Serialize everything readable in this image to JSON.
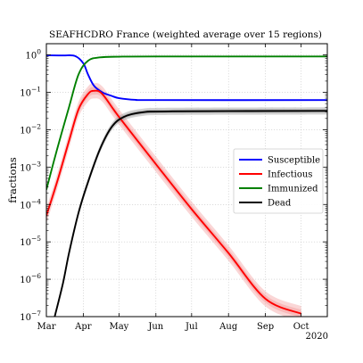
{
  "chart_data": {
    "type": "line",
    "title": "SEAFHCDRO France (weighted average over 15 regions)",
    "xlabel": "",
    "ylabel": "fractions",
    "year_label": "2020",
    "x_scale": "date",
    "y_scale": "log",
    "xlim": [
      "2020-03-01",
      "2020-10-23"
    ],
    "ylim": [
      1e-07,
      2
    ],
    "x_ticks": [
      {
        "date": "2020-03-01",
        "label": "Mar"
      },
      {
        "date": "2020-04-01",
        "label": "Apr"
      },
      {
        "date": "2020-05-01",
        "label": "May"
      },
      {
        "date": "2020-06-01",
        "label": "Jun"
      },
      {
        "date": "2020-07-01",
        "label": "Jul"
      },
      {
        "date": "2020-08-01",
        "label": "Aug"
      },
      {
        "date": "2020-09-01",
        "label": "Sep"
      },
      {
        "date": "2020-10-01",
        "label": "Oct"
      }
    ],
    "y_ticks": [
      {
        "exp": 0,
        "label": "10",
        "sup": "0"
      },
      {
        "exp": -1,
        "label": "10",
        "sup": "−1"
      },
      {
        "exp": -2,
        "label": "10",
        "sup": "−2"
      },
      {
        "exp": -3,
        "label": "10",
        "sup": "−3"
      },
      {
        "exp": -4,
        "label": "10",
        "sup": "−4"
      },
      {
        "exp": -5,
        "label": "10",
        "sup": "−5"
      },
      {
        "exp": -6,
        "label": "10",
        "sup": "−6"
      },
      {
        "exp": -7,
        "label": "10",
        "sup": "−7"
      }
    ],
    "grid": true,
    "legend_position": "center-right",
    "series": [
      {
        "name": "Susceptible",
        "color": "#0000ff",
        "band_color": "",
        "points": [
          [
            "2020-03-01",
            0.98
          ],
          [
            "2020-03-15",
            0.97
          ],
          [
            "2020-03-25",
            0.94
          ],
          [
            "2020-04-01",
            0.6
          ],
          [
            "2020-04-05",
            0.3
          ],
          [
            "2020-04-10",
            0.15
          ],
          [
            "2020-04-17",
            0.1
          ],
          [
            "2020-04-25",
            0.08
          ],
          [
            "2020-05-01",
            0.07
          ],
          [
            "2020-05-15",
            0.063
          ],
          [
            "2020-06-01",
            0.062
          ],
          [
            "2020-10-23",
            0.062
          ]
        ]
      },
      {
        "name": "Infectious",
        "color": "#ff0000",
        "band_color": "#f4a3a3",
        "points": [
          [
            "2020-03-01",
            5e-05
          ],
          [
            "2020-03-10",
            0.0004
          ],
          [
            "2020-03-20",
            0.005
          ],
          [
            "2020-03-28",
            0.035
          ],
          [
            "2020-04-05",
            0.09
          ],
          [
            "2020-04-10",
            0.11
          ],
          [
            "2020-04-17",
            0.09
          ],
          [
            "2020-05-01",
            0.022
          ],
          [
            "2020-06-01",
            0.0012
          ],
          [
            "2020-07-01",
            7.5e-05
          ],
          [
            "2020-08-01",
            5e-06
          ],
          [
            "2020-09-01",
            3e-07
          ],
          [
            "2020-10-01",
            1.2e-07
          ]
        ],
        "band_factor": 1.6
      },
      {
        "name": "Immunized",
        "color": "#008000",
        "band_color": "",
        "points": [
          [
            "2020-03-01",
            0.00025
          ],
          [
            "2020-03-10",
            0.003
          ],
          [
            "2020-03-20",
            0.04
          ],
          [
            "2020-03-28",
            0.3
          ],
          [
            "2020-04-05",
            0.7
          ],
          [
            "2020-04-15",
            0.86
          ],
          [
            "2020-05-01",
            0.9
          ],
          [
            "2020-06-01",
            0.91
          ],
          [
            "2020-10-23",
            0.91
          ]
        ]
      },
      {
        "name": "Dead",
        "color": "#000000",
        "band_color": "#9e9e9e",
        "points": [
          [
            "2020-03-08",
            1e-07
          ],
          [
            "2020-03-15",
            8e-07
          ],
          [
            "2020-03-20",
            5e-06
          ],
          [
            "2020-03-28",
            6e-05
          ],
          [
            "2020-04-05",
            0.0004
          ],
          [
            "2020-04-15",
            0.003
          ],
          [
            "2020-04-25",
            0.012
          ],
          [
            "2020-05-05",
            0.022
          ],
          [
            "2020-05-20",
            0.029
          ],
          [
            "2020-06-15",
            0.031
          ],
          [
            "2020-10-23",
            0.032
          ]
        ],
        "band_factor": 1.25
      }
    ]
  }
}
